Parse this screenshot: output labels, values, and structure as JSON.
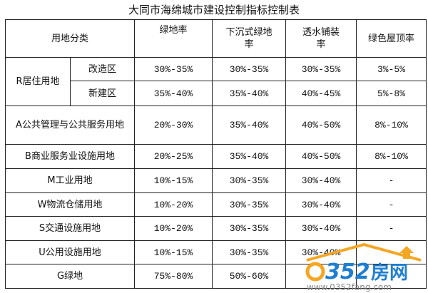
{
  "title": "大同市海绵城市建设控制指标控制表",
  "headers": {
    "category": "用地分类",
    "green_rate": "绿地率",
    "sunken_green": "下沉式绿地率",
    "permeable": "透水铺装率",
    "green_roof": "绿色屋顶率"
  },
  "residential": {
    "label": "R居住用地",
    "rows": [
      {
        "sub": "改造区",
        "values": [
          "30%-35%",
          "30%-35%",
          "30%-35%",
          "3%-5%"
        ]
      },
      {
        "sub": "新建区",
        "values": [
          "35%-40%",
          "35%-40%",
          "40%-45%",
          "5%-8%"
        ]
      }
    ]
  },
  "rows": [
    {
      "label": "A公共管理与公共服务用地",
      "values": [
        "20%-30%",
        "35%-40%",
        "40%-50%",
        "8%-10%"
      ]
    },
    {
      "label": "B商业服务业设施用地",
      "values": [
        "20%-25%",
        "35%-40%",
        "40%-50%",
        "8%-10%"
      ]
    },
    {
      "label": "M工业用地",
      "values": [
        "10%-15%",
        "30%-35%",
        "30%-40%",
        "-"
      ]
    },
    {
      "label": "W物流仓储用地",
      "values": [
        "10%-20%",
        "30%-35%",
        "30%-40%",
        "-"
      ]
    },
    {
      "label": "S交通设施用地",
      "values": [
        "10%-20%",
        "30%-35%",
        "30%-40%",
        "-"
      ]
    },
    {
      "label": "U公用设施用地",
      "values": [
        "10%-15%",
        "30%-35%",
        "30%-40%",
        "-"
      ]
    },
    {
      "label": "G绿地",
      "values": [
        "75%-80%",
        "50%-60%",
        "",
        ""
      ]
    }
  ],
  "watermark": {
    "logo": "0352房网",
    "url": "www.0352fang.com"
  }
}
